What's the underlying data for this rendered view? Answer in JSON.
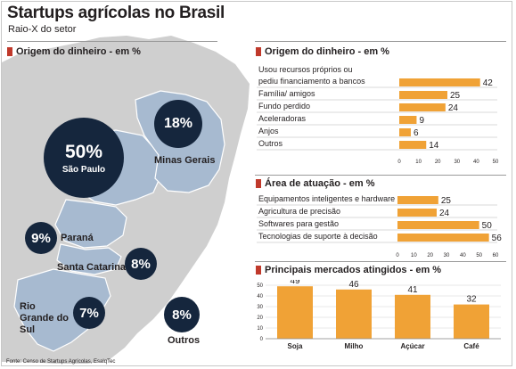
{
  "header": {
    "title": "Startups agrícolas no Brasil",
    "subtitle": "Raio-X do setor"
  },
  "map": {
    "section_title": "Origem do dinheiro - em %",
    "regions": [
      {
        "value": "50%",
        "name": "São Paulo"
      },
      {
        "value": "18%",
        "name": "Minas Gerais"
      },
      {
        "value": "9%",
        "name": "Paraná"
      },
      {
        "value": "8%",
        "name": "Santa Catarina"
      },
      {
        "value": "7%",
        "name": "Rio Grande do Sul"
      },
      {
        "value": "8%",
        "name": "Outros"
      }
    ],
    "colors": {
      "land": "#cfcfcf",
      "highlight": "#a7bad0",
      "circle": "#15263d"
    }
  },
  "source": "Fonte: Censo de Startups Agrícolas, EsalqTec",
  "colors": {
    "bar": "#f0a236",
    "accent": "#c0392b",
    "text": "#231f20"
  },
  "chart_data": [
    {
      "type": "bar",
      "orientation": "horizontal",
      "title": "Origem do dinheiro - em %",
      "categories": [
        "Usou recursos próprios ou pediu financiamento a bancos",
        "Família/ amigos",
        "Fundo perdido",
        "Aceleradoras",
        "Anjos",
        "Outros"
      ],
      "category_lines": [
        [
          "Usou recursos próprios ou",
          "pediu financiamento a bancos"
        ],
        [
          "Família/ amigos"
        ],
        [
          "Fundo perdido"
        ],
        [
          "Aceleradoras"
        ],
        [
          "Anjos"
        ],
        [
          "Outros"
        ]
      ],
      "values": [
        42,
        25,
        24,
        9,
        6,
        14
      ],
      "xlim": [
        0,
        50
      ],
      "xticks": [
        0,
        10,
        20,
        30,
        40,
        50
      ]
    },
    {
      "type": "bar",
      "orientation": "horizontal",
      "title": "Área de atuação - em %",
      "categories": [
        "Equipamentos inteligentes e hardware",
        "Agricultura de precisão",
        "Softwares para gestão",
        "Tecnologias de suporte à decisão"
      ],
      "values": [
        25,
        24,
        50,
        56
      ],
      "xlim": [
        0,
        60
      ],
      "xticks": [
        0,
        10,
        20,
        30,
        40,
        50,
        60
      ]
    },
    {
      "type": "bar",
      "orientation": "vertical",
      "title": "Principais mercados atingidos - em %",
      "categories": [
        "Soja",
        "Milho",
        "Açúcar",
        "Café"
      ],
      "values": [
        49,
        46,
        41,
        32
      ],
      "ylim": [
        0,
        50
      ],
      "yticks": [
        0,
        10,
        20,
        30,
        40,
        50
      ]
    }
  ]
}
